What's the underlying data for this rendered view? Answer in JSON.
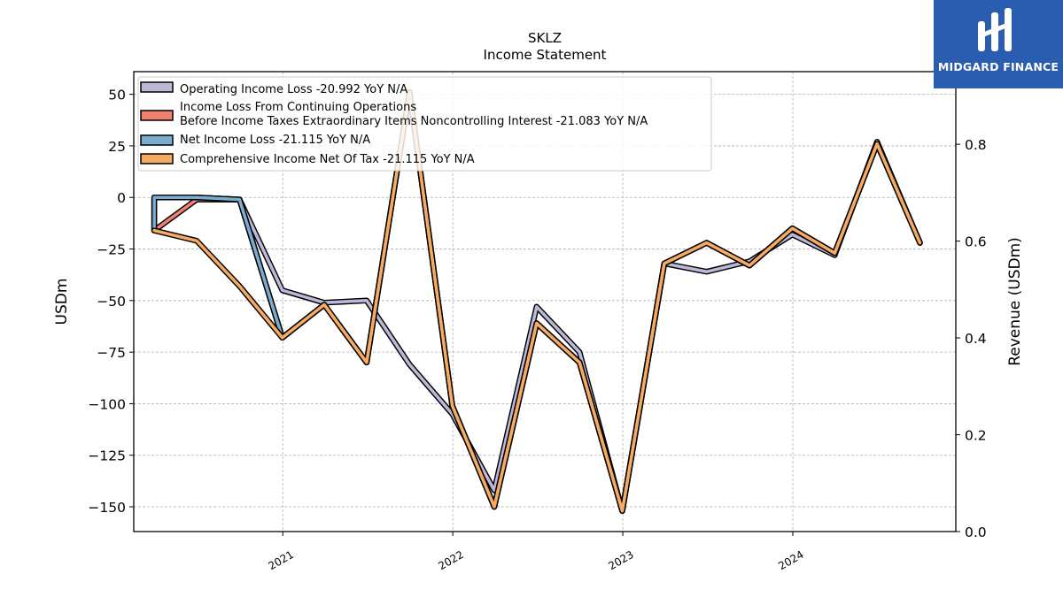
{
  "brand": {
    "name": "MIDGARD FINANCE",
    "color": "#2a5db0"
  },
  "chart_data": {
    "type": "line",
    "title": "SKLZ",
    "subtitle": "Income Statement",
    "ylabel": "USDm",
    "ylabel_right": "Revenue (USDm)",
    "ylim": [
      -162,
      61
    ],
    "yticks": [
      50,
      25,
      0,
      -25,
      -50,
      -75,
      -100,
      -125,
      -150
    ],
    "ylim_right": [
      0,
      0.95
    ],
    "yticks_right": [
      0.0,
      0.2,
      0.4,
      0.6,
      0.8
    ],
    "xlim": [
      "2020-02-16",
      "2024-12-16"
    ],
    "xticks": [
      "2021",
      "2022",
      "2023",
      "2024"
    ],
    "grid": true,
    "legend_position": "upper-left",
    "series": [
      {
        "name": "Operating Income Loss  -20.992 YoY N/A",
        "color": "#bcb8d8",
        "x": [
          "2020-03-31",
          "2020-03-31",
          "2020-06-30",
          "2020-09-30",
          "2020-12-31",
          "2021-03-31",
          "2021-06-30",
          "2021-09-30",
          "2021-12-31",
          "2022-03-31",
          "2022-06-30",
          "2022-09-30",
          "2022-12-31",
          "2023-03-31",
          "2023-06-30",
          "2023-09-30",
          "2023-12-31",
          "2024-03-31",
          "2024-06-30",
          "2024-09-30"
        ],
        "values": [
          -16,
          0,
          0,
          -1,
          -45,
          -51,
          -50,
          -81,
          -105,
          -142,
          -53,
          -75,
          -152,
          -32,
          -36,
          -31,
          -18,
          -28,
          27,
          -22
        ]
      },
      {
        "name": "Income Loss From Continuing Operations\nBefore Income Taxes Extraordinary Items Noncontrolling Interest  -21.083 YoY N/A",
        "color": "#f08070",
        "x": [
          "2020-03-31",
          "2020-06-30",
          "2020-09-30",
          "2020-12-31",
          "2021-03-31",
          "2021-06-30",
          "2021-09-30",
          "2021-12-31",
          "2022-03-31",
          "2022-06-30",
          "2022-09-30",
          "2022-12-31",
          "2023-03-31",
          "2023-06-30",
          "2023-09-30",
          "2023-12-31",
          "2024-03-31",
          "2024-06-30",
          "2024-09-30"
        ],
        "values": [
          -16,
          -1,
          -1,
          -68,
          -52,
          -80,
          51,
          -101,
          -150,
          -61,
          -80,
          -152,
          -32,
          -22,
          -33,
          -15,
          -27,
          26,
          -22
        ]
      },
      {
        "name": "Net Income Loss  -21.115 YoY N/A",
        "color": "#7aabd0",
        "x": [
          "2020-03-31",
          "2020-03-31",
          "2020-06-30",
          "2020-09-30",
          "2020-12-31",
          "2021-03-31",
          "2021-06-30",
          "2021-09-30",
          "2021-12-31",
          "2022-03-31",
          "2022-06-30",
          "2022-09-30",
          "2022-12-31",
          "2023-03-31",
          "2023-06-30",
          "2023-09-30",
          "2023-12-31",
          "2024-03-31",
          "2024-06-30",
          "2024-09-30"
        ],
        "values": [
          -16,
          0,
          0,
          -1,
          -68,
          -52,
          -80,
          51,
          -101,
          -150,
          -61,
          -80,
          -152,
          -32,
          -22,
          -33,
          -15,
          -27,
          26,
          -22
        ]
      },
      {
        "name": "Comprehensive Income Net Of Tax  -21.115 YoY N/A",
        "color": "#f7ab62",
        "x": [
          "2020-03-31",
          "2020-06-30",
          "2020-09-30",
          "2020-12-31",
          "2021-03-31",
          "2021-06-30",
          "2021-09-30",
          "2021-12-31",
          "2022-03-31",
          "2022-06-30",
          "2022-09-30",
          "2022-12-31",
          "2023-03-31",
          "2023-06-30",
          "2023-09-30",
          "2023-12-31",
          "2024-03-31",
          "2024-06-30",
          "2024-09-30"
        ],
        "values": [
          -16,
          -21,
          -43,
          -68,
          -52,
          -80,
          51,
          -101,
          -150,
          -61,
          -80,
          -152,
          -32,
          -22,
          -33,
          -15,
          -27,
          26,
          -22
        ]
      }
    ]
  }
}
